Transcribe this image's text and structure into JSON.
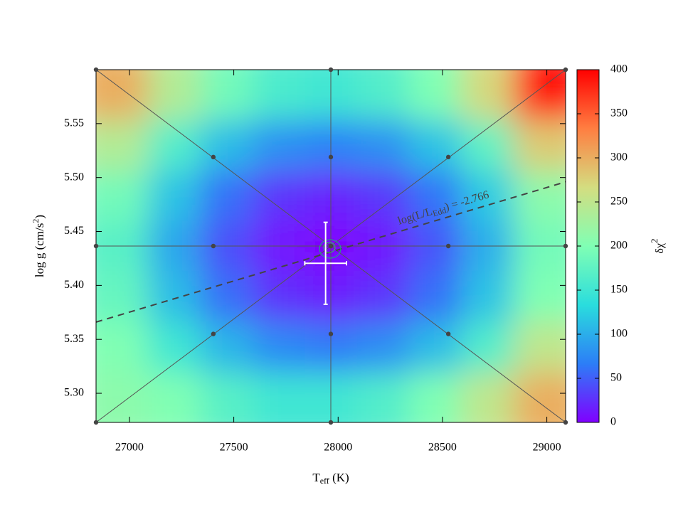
{
  "chart_data": {
    "type": "heatmap",
    "x_label": {
      "text": "T",
      "sub": "eff",
      "tail": " (K)"
    },
    "y_label": {
      "text": "log g (cm/s",
      "sup": "2",
      "tail": ")"
    },
    "colorbar_label": {
      "text": "δχ",
      "sup": "2"
    },
    "xlim": [
      26840,
      29090
    ],
    "ylim": [
      5.273,
      5.6
    ],
    "xticks": [
      27000,
      27500,
      28000,
      28500,
      29000
    ],
    "yticks": [
      {
        "value": 5.3,
        "label": "5.30"
      },
      5.35,
      {
        "value": 5.4,
        "label": "5.40"
      },
      5.45,
      {
        "value": 5.5,
        "label": "5.50"
      },
      5.55
    ],
    "clim": [
      0,
      400
    ],
    "cticks": [
      0,
      50,
      100,
      150,
      200,
      250,
      300,
      350,
      400
    ],
    "colormap": [
      "#8000ff",
      "#2c7ef7",
      "#2adddd",
      "#80ffb4",
      "#d4dd80",
      "#ff7e41",
      "#ff0000"
    ],
    "x": [
      26965,
      27215,
      27465,
      27715,
      27965,
      28215,
      28465,
      28715,
      28965
    ],
    "y": [
      5.577,
      5.53,
      5.483,
      5.437,
      5.39,
      5.343,
      5.296
    ],
    "z": [
      [
        300,
        240,
        190,
        160,
        150,
        165,
        200,
        270,
        390
      ],
      [
        240,
        165,
        110,
        80,
        70,
        80,
        115,
        175,
        280
      ],
      [
        190,
        115,
        60,
        28,
        18,
        30,
        62,
        120,
        210
      ],
      [
        170,
        95,
        42,
        10,
        0,
        12,
        45,
        100,
        190
      ],
      [
        180,
        110,
        58,
        26,
        16,
        28,
        60,
        115,
        200
      ],
      [
        200,
        150,
        105,
        75,
        65,
        78,
        110,
        165,
        250
      ],
      [
        210,
        200,
        170,
        150,
        150,
        165,
        200,
        250,
        300
      ]
    ],
    "model_grid": {
      "x": [
        27965,
        27402,
        27965,
        28528,
        27402,
        28528,
        27402,
        27965,
        28528,
        26840,
        27965,
        29090,
        26840,
        29090,
        26840,
        27965,
        29090
      ],
      "y": [
        5.4365,
        5.519,
        5.519,
        5.519,
        5.4365,
        5.4365,
        5.355,
        5.355,
        5.355,
        5.6,
        5.6,
        5.6,
        5.4365,
        5.4365,
        5.273,
        5.273,
        5.273
      ]
    },
    "eddington_line": {
      "x": [
        26840,
        29090
      ],
      "y": [
        5.366,
        5.496
      ],
      "label": {
        "text": "log(L/L",
        "sub": "Edd",
        "tail": ") = -2.766"
      }
    },
    "best_fit": {
      "x": 27940,
      "xerr": 100,
      "y": 5.4205,
      "yerr": 0.038
    }
  }
}
